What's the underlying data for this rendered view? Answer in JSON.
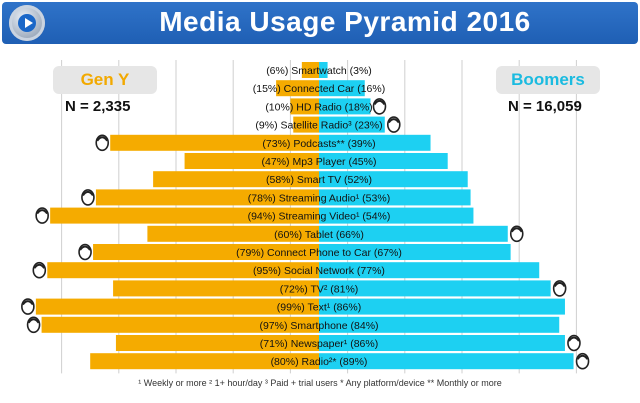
{
  "header": {
    "title": "Media Usage Pyramid 2016"
  },
  "groups": {
    "left": {
      "label": "Gen Y",
      "n": "N = 2,335"
    },
    "right": {
      "label": "Boomers",
      "n": "N = 16,059"
    }
  },
  "colors": {
    "left": "#f5ab00",
    "right": "#1dd0f2",
    "header": "#2466bf"
  },
  "footnote": "¹ Weekly or more  ² 1+ hour/day  ³ Paid + trial users  * Any platform/device  ** Monthly or more",
  "chart_data": {
    "type": "bar",
    "orientation": "horizontal-diverging",
    "categories": [
      "(6%) Smartwatch (3%)",
      "(15%) Connected Car (16%)",
      "(10%) HD Radio (18%)",
      "(9%) Satellite Radio³ (23%)",
      "(73%) Podcasts** (39%)",
      "(47%) Mp3 Player (45%)",
      "(58%) Smart TV (52%)",
      "(78%) Streaming Audio¹ (53%)",
      "(94%) Streaming Video¹ (54%)",
      "(60%) Tablet (66%)",
      "(79%) Connect Phone to Car (67%)",
      "(95%) Social Network (77%)",
      "(72%) TV² (81%)",
      "(99%) Text¹ (86%)",
      "(97%) Smartphone (84%)",
      "(71%) Newspaper¹ (86%)",
      "(80%) Radio²* (89%)"
    ],
    "series": [
      {
        "name": "Gen Y",
        "values": [
          6,
          15,
          10,
          9,
          73,
          47,
          58,
          78,
          94,
          60,
          79,
          95,
          72,
          99,
          97,
          71,
          80
        ]
      },
      {
        "name": "Boomers",
        "values": [
          3,
          16,
          18,
          23,
          39,
          45,
          52,
          53,
          54,
          66,
          67,
          77,
          81,
          86,
          84,
          86,
          89
        ]
      }
    ],
    "xlim": [
      0,
      100
    ],
    "grid": true,
    "left_icon_rows": [
      4,
      7,
      8,
      10,
      11,
      13,
      14
    ],
    "right_icon_rows": [
      2,
      3,
      9,
      12,
      15,
      16
    ]
  }
}
